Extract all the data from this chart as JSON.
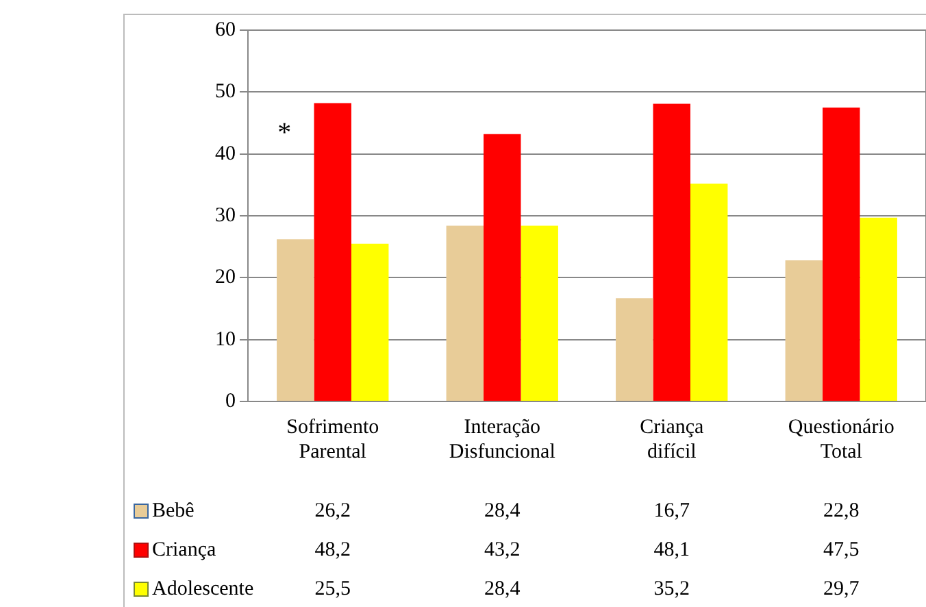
{
  "chart_data": {
    "type": "bar",
    "categories": [
      "Sofrimento Parental",
      "Interação Disfuncional",
      "Criança difícil",
      "Questionário Total"
    ],
    "series": [
      {
        "name": "Bebê",
        "color": "#e8cc98",
        "values": [
          26.2,
          28.4,
          16.7,
          22.8
        ],
        "value_labels": [
          "26,2",
          "28,4",
          "16,7",
          "22,8"
        ]
      },
      {
        "name": "Criança",
        "color": "#ff0000",
        "values": [
          48.2,
          43.2,
          48.1,
          47.5
        ],
        "value_labels": [
          "48,2",
          "43,2",
          "48,1",
          "47,5"
        ]
      },
      {
        "name": "Adolescente",
        "color": "#ffff00",
        "values": [
          25.5,
          28.4,
          35.2,
          29.7
        ],
        "value_labels": [
          "25,5",
          "28,4",
          "35,2",
          "29,7"
        ]
      }
    ],
    "ylim": [
      0,
      60
    ],
    "yticks": [
      0,
      10,
      20,
      30,
      40,
      50,
      60
    ],
    "grid": "y",
    "legend": "bottom",
    "annotations": [
      "*"
    ]
  }
}
